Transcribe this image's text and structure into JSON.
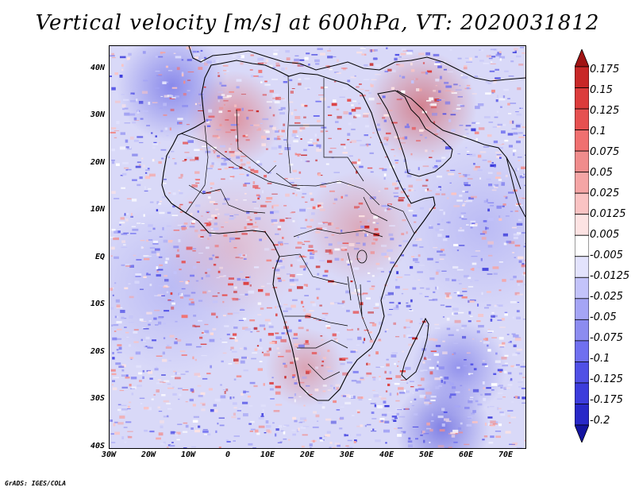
{
  "chart_data": {
    "type": "heatmap",
    "title": "Vertical velocity [m/s] at 600hPa, VT: 2020031812",
    "xlabel": "",
    "ylabel": "",
    "xlim": [
      -30,
      75
    ],
    "ylim": [
      -40,
      45
    ],
    "x_ticks": [
      {
        "value": -30,
        "label": "30W"
      },
      {
        "value": -20,
        "label": "20W"
      },
      {
        "value": -10,
        "label": "10W"
      },
      {
        "value": 0,
        "label": "0"
      },
      {
        "value": 10,
        "label": "10E"
      },
      {
        "value": 20,
        "label": "20E"
      },
      {
        "value": 30,
        "label": "30E"
      },
      {
        "value": 40,
        "label": "40E"
      },
      {
        "value": 50,
        "label": "50E"
      },
      {
        "value": 60,
        "label": "60E"
      },
      {
        "value": 70,
        "label": "70E"
      }
    ],
    "y_ticks": [
      {
        "value": 40,
        "label": "40N"
      },
      {
        "value": 30,
        "label": "30N"
      },
      {
        "value": 20,
        "label": "20N"
      },
      {
        "value": 10,
        "label": "10N"
      },
      {
        "value": 0,
        "label": "EQ"
      },
      {
        "value": -10,
        "label": "10S"
      },
      {
        "value": -20,
        "label": "20S"
      },
      {
        "value": -30,
        "label": "30S"
      },
      {
        "value": -40,
        "label": "40S"
      }
    ],
    "colorbar": {
      "labels": [
        "0.175",
        "0.15",
        "0.125",
        "0.1",
        "0.075",
        "0.05",
        "0.025",
        "0.0125",
        "0.005",
        "-0.005",
        "-0.0125",
        "-0.025",
        "-0.05",
        "-0.075",
        "-0.1",
        "-0.125",
        "-0.175",
        "-0.2"
      ],
      "colors": [
        "#a01414",
        "#c82828",
        "#dc3c3c",
        "#e65050",
        "#f07070",
        "#f08c8c",
        "#f5a5a5",
        "#fac3c3",
        "#fde3e3",
        "#ffffff",
        "#e3e3fd",
        "#c3c3fa",
        "#a5a5f5",
        "#8c8cf0",
        "#7070f0",
        "#5050e6",
        "#3c3cdc",
        "#2828c8",
        "#1414a0"
      ],
      "extend": "both"
    },
    "map_region": "Africa",
    "grid": false
  },
  "footer": "GrADS: IGES/COLA"
}
